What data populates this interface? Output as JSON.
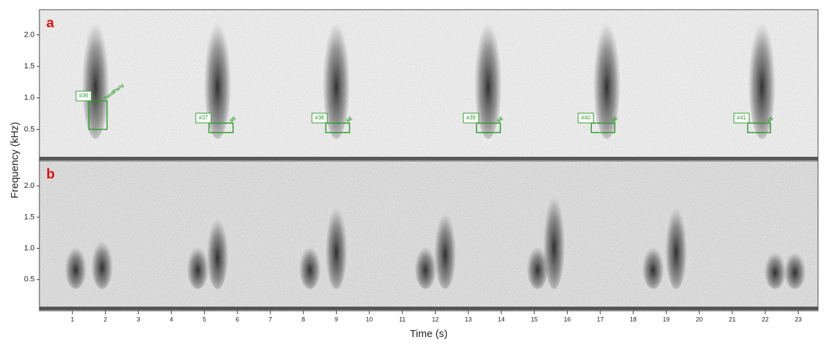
{
  "chart_data": [
    {
      "type": "spectrogram",
      "panel": "a",
      "y_label": "Frequency (kHz)",
      "xlim": [
        0,
        23.6
      ],
      "ylim": [
        0,
        2.4
      ],
      "yticks": [
        0.5,
        {
          "value": 1.0,
          "label": "1.0"
        },
        1.5,
        {
          "value": 2.0,
          "label": "2.0"
        }
      ],
      "calls": [
        {
          "t": 1.7,
          "fmax": 2.4
        },
        {
          "t": 5.4,
          "fmax": 2.4
        },
        {
          "t": 9.0,
          "fmax": 2.4
        },
        {
          "t": 13.6,
          "fmax": 2.4
        },
        {
          "t": 17.2,
          "fmax": 2.4
        },
        {
          "t": 21.9,
          "fmax": 2.4
        }
      ],
      "annotations": [
        {
          "label": "#36",
          "label_t": 1.11,
          "label_f": 1.03,
          "t0": 1.5,
          "t1": 2.05,
          "f0": 0.5,
          "f1": 0.95,
          "tag": "ThirdParty"
        },
        {
          "label": "#37",
          "label_t": 4.74,
          "label_f": 0.68,
          "t0": 5.14,
          "t1": 5.87,
          "f0": 0.45,
          "f1": 0.6,
          "tag": "SE"
        },
        {
          "label": "#38",
          "label_t": 8.26,
          "label_f": 0.68,
          "t0": 8.68,
          "t1": 9.4,
          "f0": 0.45,
          "f1": 0.6,
          "tag": "SE"
        },
        {
          "label": "#39",
          "label_t": 12.85,
          "label_f": 0.68,
          "t0": 13.25,
          "t1": 13.97,
          "f0": 0.45,
          "f1": 0.6,
          "tag": "SE"
        },
        {
          "label": "#40",
          "label_t": 16.33,
          "label_f": 0.68,
          "t0": 16.73,
          "t1": 17.44,
          "f0": 0.45,
          "f1": 0.6,
          "tag": "SE"
        },
        {
          "label": "#41",
          "label_t": 21.05,
          "label_f": 0.68,
          "t0": 21.47,
          "t1": 22.16,
          "f0": 0.45,
          "f1": 0.6,
          "tag": "SE"
        }
      ]
    },
    {
      "type": "spectrogram",
      "panel": "b",
      "x_label": "Time (s)",
      "xlim": [
        0,
        23.6
      ],
      "ylim": [
        0,
        2.4
      ],
      "xticks": [
        1,
        2,
        3,
        4,
        5,
        6,
        7,
        8,
        9,
        10,
        11,
        12,
        13,
        14,
        15,
        16,
        17,
        18,
        19,
        20,
        21,
        22,
        23
      ],
      "yticks": [
        0.5,
        {
          "value": 1.0,
          "label": "1.0"
        },
        1.5,
        {
          "value": 2.0,
          "label": "2.0"
        }
      ],
      "calls": [
        {
          "t": 1.1,
          "fmax": 1.1
        },
        {
          "t": 1.9,
          "fmax": 1.2
        },
        {
          "t": 4.8,
          "fmax": 1.1
        },
        {
          "t": 5.4,
          "fmax": 1.6
        },
        {
          "t": 8.2,
          "fmax": 1.1
        },
        {
          "t": 9.0,
          "fmax": 1.8
        },
        {
          "t": 11.7,
          "fmax": 1.1
        },
        {
          "t": 12.3,
          "fmax": 1.7
        },
        {
          "t": 15.1,
          "fmax": 1.1
        },
        {
          "t": 15.6,
          "fmax": 2.0
        },
        {
          "t": 18.6,
          "fmax": 1.1
        },
        {
          "t": 19.3,
          "fmax": 1.8
        },
        {
          "t": 22.3,
          "fmax": 1.0
        },
        {
          "t": 22.9,
          "fmax": 1.0
        }
      ]
    }
  ]
}
